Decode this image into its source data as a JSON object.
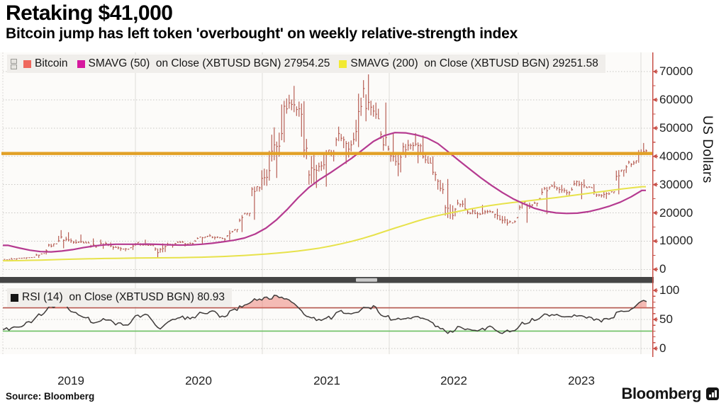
{
  "header": {
    "title": "Retaking $41,000",
    "subtitle": "Bitcoin jump has left token 'overbought' on weekly relative-strength index"
  },
  "legend_main": {
    "items": [
      {
        "label": "Bitcoin",
        "color": "#ef685d"
      },
      {
        "label": "SMAVG (50)  on Close (XBTUSD BGN) 27954.25",
        "color": "#d6189e"
      },
      {
        "label": "SMAVG (200)  on Close (XBTUSD BGN) 29251.58",
        "color": "#f2ea32"
      }
    ]
  },
  "legend_rsi": {
    "label": "RSI (14)  on Close (XBTUSD BGN) 80.93",
    "color": "#141414"
  },
  "axes": {
    "price": {
      "title": "US Dollars",
      "ticks": [
        {
          "label": "70000",
          "value": 70000
        },
        {
          "label": "60000",
          "value": 60000
        },
        {
          "label": "50000",
          "value": 50000
        },
        {
          "label": "40000",
          "value": 40000
        },
        {
          "label": "30000",
          "value": 30000
        },
        {
          "label": "20000",
          "value": 20000
        },
        {
          "label": "10000",
          "value": 10000
        },
        {
          "label": "0",
          "value": 0
        }
      ]
    },
    "rsi": {
      "ticks": [
        {
          "label": "100",
          "value": 100
        },
        {
          "label": "50",
          "value": 50
        },
        {
          "label": "0",
          "value": 0
        }
      ]
    },
    "x": {
      "years": [
        "2019",
        "2020",
        "2021",
        "2022",
        "2023"
      ]
    }
  },
  "footer": {
    "source": "Source:  Bloomberg",
    "brand": "Bloomberg"
  },
  "colors": {
    "bitcoin_bar": "#b4584e",
    "sma50": "#b53a90",
    "sma200": "#e7e24b",
    "threshold": "#e2a026",
    "rsi_line": "#3f3b3a",
    "overbought": "#b4564e",
    "oversold": "#6cc063",
    "overbought_fill": "rgba(235,108,98,0.45)",
    "axis": "#c9524a",
    "grid": "#c9c7c4",
    "separator": "#454545",
    "plot_bg": "#fcfbf9"
  },
  "chart_data": [
    {
      "type": "bar",
      "panel": "price",
      "unit": "USD",
      "ylim": [
        0,
        70000
      ],
      "threshold": 41000,
      "months": [
        "2019-01",
        "2019-02",
        "2019-03",
        "2019-04",
        "2019-05",
        "2019-06",
        "2019-07",
        "2019-08",
        "2019-09",
        "2019-10",
        "2019-11",
        "2019-12",
        "2020-01",
        "2020-02",
        "2020-03",
        "2020-04",
        "2020-05",
        "2020-06",
        "2020-07",
        "2020-08",
        "2020-09",
        "2020-10",
        "2020-11",
        "2020-12",
        "2021-01",
        "2021-02",
        "2021-03",
        "2021-04",
        "2021-05",
        "2021-06",
        "2021-07",
        "2021-08",
        "2021-09",
        "2021-10",
        "2021-11",
        "2021-12",
        "2022-01",
        "2022-02",
        "2022-03",
        "2022-04",
        "2022-05",
        "2022-06",
        "2022-07",
        "2022-08",
        "2022-09",
        "2022-10",
        "2022-11",
        "2022-12",
        "2023-01",
        "2023-02",
        "2023-03",
        "2023-04",
        "2023-05",
        "2023-06",
        "2023-07",
        "2023-08",
        "2023-09",
        "2023-10",
        "2023-11",
        "2023-12"
      ],
      "high": [
        4100,
        4180,
        4290,
        5640,
        9060,
        13880,
        13130,
        12320,
        10950,
        10540,
        9520,
        7690,
        9570,
        10500,
        9190,
        9460,
        10070,
        10380,
        11450,
        12470,
        12050,
        14100,
        19860,
        29300,
        41990,
        58350,
        61780,
        64900,
        59500,
        41330,
        42240,
        50500,
        52920,
        66970,
        68990,
        59040,
        47990,
        45820,
        48230,
        47450,
        40020,
        31960,
        24670,
        25210,
        22800,
        21020,
        21470,
        18370,
        23960,
        25250,
        29180,
        31050,
        29870,
        31430,
        31820,
        30180,
        27480,
        35150,
        38450,
        44700
      ],
      "low": [
        3400,
        3350,
        3670,
        4060,
        5270,
        7480,
        9090,
        9360,
        7700,
        7300,
        6520,
        6430,
        6870,
        8400,
        3860,
        6150,
        8100,
        8830,
        8900,
        10550,
        9820,
        10370,
        13200,
        17570,
        28130,
        32320,
        44960,
        46930,
        30000,
        28800,
        29280,
        37330,
        39570,
        43280,
        53260,
        42000,
        32950,
        34320,
        37550,
        37580,
        26700,
        17590,
        18780,
        19520,
        18100,
        18150,
        15480,
        16260,
        16490,
        21390,
        19550,
        26940,
        25810,
        24800,
        28860,
        25350,
        24900,
        26540,
        34100,
        37720
      ],
      "close": [
        3460,
        3820,
        4100,
        5270,
        8560,
        10820,
        10090,
        9630,
        8290,
        9150,
        7560,
        7190,
        9350,
        8550,
        6440,
        8630,
        9450,
        9140,
        11350,
        11650,
        10780,
        13800,
        19700,
        29000,
        33110,
        45140,
        58770,
        57750,
        37330,
        35040,
        41490,
        47160,
        43790,
        61320,
        56950,
        46220,
        38480,
        43190,
        45540,
        37650,
        31790,
        19930,
        23290,
        20050,
        19430,
        20490,
        17160,
        16540,
        23130,
        23140,
        28470,
        29230,
        27220,
        30470,
        29230,
        25940,
        26960,
        34650,
        37720,
        41950
      ],
      "smavg50": [
        8500,
        7600,
        6800,
        6300,
        6200,
        6500,
        7000,
        7700,
        8300,
        8700,
        8900,
        8900,
        8900,
        8950,
        8850,
        8700,
        8600,
        8650,
        8900,
        9250,
        9750,
        10300,
        11100,
        12500,
        14600,
        17600,
        21300,
        25400,
        29000,
        31800,
        34200,
        36800,
        39400,
        42300,
        45300,
        47300,
        48400,
        48300,
        47600,
        46500,
        44500,
        41500,
        38400,
        35400,
        32400,
        29700,
        27200,
        25000,
        23200,
        21600,
        20600,
        20000,
        19800,
        19900,
        20400,
        21300,
        22400,
        23800,
        25700,
        27954
      ],
      "smavg200": [
        3050,
        3120,
        3200,
        3290,
        3390,
        3500,
        3610,
        3710,
        3790,
        3860,
        3910,
        3960,
        4010,
        4060,
        4090,
        4120,
        4170,
        4240,
        4320,
        4430,
        4570,
        4730,
        4940,
        5190,
        5450,
        5750,
        6100,
        6500,
        6980,
        7550,
        8250,
        9050,
        9950,
        10950,
        12100,
        13350,
        14600,
        15800,
        17000,
        18100,
        19050,
        19850,
        20600,
        21350,
        22050,
        22650,
        23200,
        23650,
        24050,
        24500,
        24950,
        25400,
        25900,
        26400,
        26900,
        27400,
        27900,
        28400,
        28850,
        29251
      ],
      "smavg50_last": 27954.25,
      "smavg200_last": 29251.58
    },
    {
      "type": "line",
      "panel": "rsi",
      "ylim": [
        0,
        100
      ],
      "overbought": 70,
      "oversold": 30,
      "last": 80.93,
      "rsi": [
        33,
        39,
        46,
        58,
        73,
        77,
        62,
        56,
        45,
        52,
        43,
        41,
        55,
        57,
        35,
        46,
        53,
        52,
        60,
        63,
        55,
        65,
        75,
        83,
        87,
        89,
        86,
        72,
        52,
        49,
        53,
        64,
        58,
        68,
        71,
        57,
        49,
        51,
        56,
        47,
        38,
        28,
        36,
        33,
        32,
        37,
        28,
        31,
        44,
        50,
        58,
        60,
        53,
        58,
        55,
        47,
        51,
        64,
        67,
        80.93
      ]
    }
  ]
}
